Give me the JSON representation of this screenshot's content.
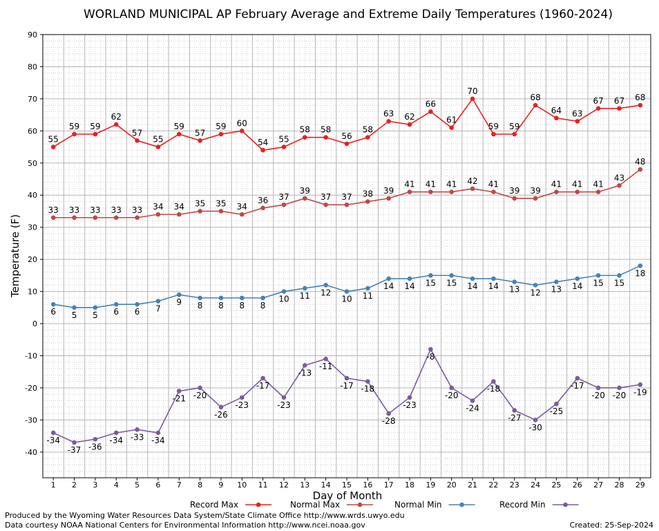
{
  "chart_data": {
    "type": "line",
    "title": "WORLAND MUNICIPAL AP February Average and Extreme Daily Temperatures (1960-2024)",
    "xlabel": "Day of Month",
    "ylabel": "Temperature (F)",
    "ylim": [
      -48,
      90
    ],
    "yticks": [
      -40,
      -30,
      -20,
      -10,
      0,
      10,
      20,
      30,
      40,
      50,
      60,
      70,
      80,
      90
    ],
    "grid": true,
    "legend_position": "bottom",
    "categories": [
      1,
      2,
      3,
      4,
      5,
      6,
      7,
      8,
      9,
      10,
      11,
      12,
      13,
      14,
      15,
      16,
      17,
      18,
      19,
      20,
      21,
      22,
      23,
      24,
      25,
      26,
      27,
      28,
      29
    ],
    "series": [
      {
        "name": "Record Max",
        "color": "#e82020",
        "label_position": "above",
        "values": [
          55,
          59,
          59,
          62,
          57,
          55,
          59,
          57,
          59,
          60,
          54,
          55,
          58,
          58,
          56,
          58,
          63,
          62,
          66,
          61,
          70,
          59,
          59,
          68,
          64,
          63,
          67,
          67,
          68
        ]
      },
      {
        "name": "Normal Max",
        "color": "#c04848",
        "label_position": "above",
        "values": [
          33,
          33,
          33,
          33,
          33,
          34,
          34,
          35,
          35,
          34,
          36,
          37,
          39,
          37,
          37,
          38,
          39,
          41,
          41,
          41,
          42,
          41,
          39,
          39,
          41,
          41,
          41,
          43,
          48
        ]
      },
      {
        "name": "Normal Min",
        "color": "#4682b4",
        "label_position": "below",
        "values": [
          6,
          5,
          5,
          6,
          6,
          7,
          9,
          8,
          8,
          8,
          8,
          10,
          11,
          12,
          10,
          11,
          14,
          14,
          15,
          15,
          14,
          14,
          13,
          12,
          13,
          14,
          15,
          15,
          18
        ]
      },
      {
        "name": "Record Min",
        "color": "#7b5b9e",
        "label_position": "below",
        "values": [
          -34,
          -37,
          -36,
          -34,
          -33,
          -34,
          -21,
          -20,
          -26,
          -23,
          -17,
          -23,
          -13,
          -11,
          -17,
          -18,
          -28,
          -23,
          -8,
          -20,
          -24,
          -18,
          -27,
          -30,
          -25,
          -17,
          -20,
          -20,
          -19
        ]
      }
    ]
  },
  "footer": {
    "produced_by": "Produced by the Wyoming Water Resources Data System/State Climate Office http://www.wrds.uwyo.edu",
    "courtesy": "Data courtesy NOAA National Centers for Environmental Information http://www.ncei.noaa.gov",
    "created": "Created: 25-Sep-2024"
  }
}
